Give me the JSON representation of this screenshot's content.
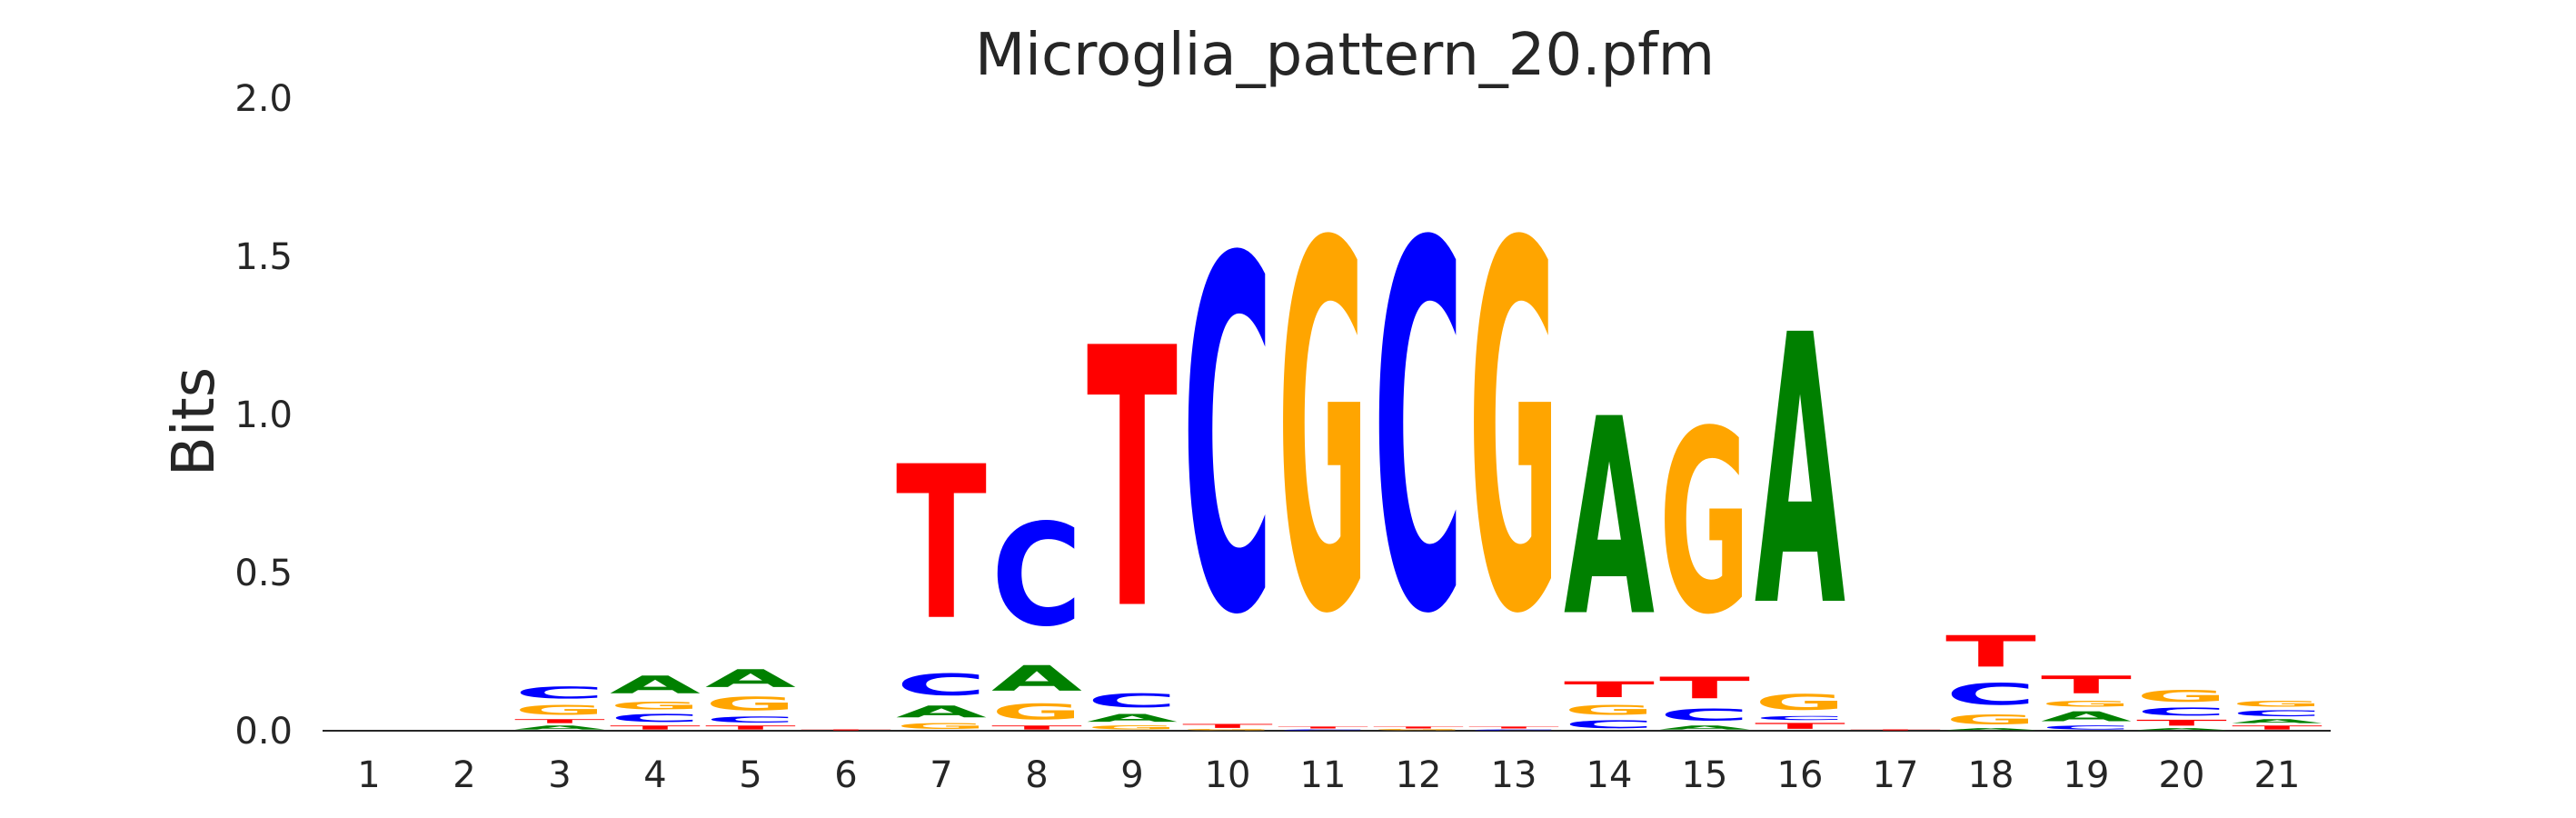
{
  "chart_data": {
    "type": "sequence-logo",
    "title": "Microglia_pattern_20.pfm",
    "ylabel": "Bits",
    "xlabel": "",
    "ylim": [
      0,
      2.0
    ],
    "yticks": [
      "0.0",
      "0.5",
      "1.0",
      "1.5",
      "2.0"
    ],
    "ytick_values": [
      0,
      0.5,
      1.0,
      1.5,
      2.0
    ],
    "grid": false,
    "colors": {
      "A": "#008000",
      "C": "#0000ff",
      "G": "#ffa500",
      "T": "#ff0000"
    },
    "positions": [
      {
        "label": "1",
        "stack": []
      },
      {
        "label": "2",
        "stack": []
      },
      {
        "label": "3",
        "stack": [
          [
            "A",
            0.02
          ],
          [
            "T",
            0.02
          ],
          [
            "G",
            0.05
          ],
          [
            "C",
            0.06
          ]
        ]
      },
      {
        "label": "4",
        "stack": [
          [
            "T",
            0.02
          ],
          [
            "C",
            0.04
          ],
          [
            "G",
            0.04
          ],
          [
            "A",
            0.09
          ]
        ]
      },
      {
        "label": "5",
        "stack": [
          [
            "T",
            0.02
          ],
          [
            "C",
            0.03
          ],
          [
            "G",
            0.07
          ],
          [
            "A",
            0.09
          ]
        ]
      },
      {
        "label": "6",
        "stack": [
          [
            "T",
            0.005
          ]
        ]
      },
      {
        "label": "7",
        "stack": [
          [
            "G",
            0.03
          ],
          [
            "A",
            0.06
          ],
          [
            "C",
            0.11
          ],
          [
            "T",
            0.78
          ]
        ]
      },
      {
        "label": "8",
        "stack": [
          [
            "T",
            0.02
          ],
          [
            "G",
            0.08
          ],
          [
            "A",
            0.13
          ],
          [
            "C",
            0.52
          ]
        ]
      },
      {
        "label": "9",
        "stack": [
          [
            "G",
            0.02
          ],
          [
            "A",
            0.04
          ],
          [
            "C",
            0.07
          ],
          [
            "T",
            1.32
          ]
        ]
      },
      {
        "label": "10",
        "stack": [
          [
            "G",
            0.005
          ],
          [
            "T",
            0.02
          ],
          [
            "C",
            1.79
          ]
        ]
      },
      {
        "label": "11",
        "stack": [
          [
            "C",
            0.005
          ],
          [
            "T",
            0.01
          ],
          [
            "G",
            1.86
          ]
        ]
      },
      {
        "label": "12",
        "stack": [
          [
            "G",
            0.005
          ],
          [
            "T",
            0.01
          ],
          [
            "C",
            1.86
          ]
        ]
      },
      {
        "label": "13",
        "stack": [
          [
            "C",
            0.005
          ],
          [
            "T",
            0.01
          ],
          [
            "G",
            1.86
          ]
        ]
      },
      {
        "label": "14",
        "stack": [
          [
            "C",
            0.04
          ],
          [
            "G",
            0.05
          ],
          [
            "T",
            0.08
          ],
          [
            "A",
            1.0
          ]
        ]
      },
      {
        "label": "15",
        "stack": [
          [
            "A",
            0.02
          ],
          [
            "C",
            0.06
          ],
          [
            "T",
            0.11
          ],
          [
            "G",
            0.93
          ]
        ]
      },
      {
        "label": "16",
        "stack": [
          [
            "T",
            0.03
          ],
          [
            "C",
            0.02
          ],
          [
            "G",
            0.08
          ],
          [
            "A",
            1.37
          ]
        ]
      },
      {
        "label": "17",
        "stack": [
          [
            "T",
            0.005
          ]
        ]
      },
      {
        "label": "18",
        "stack": [
          [
            "A",
            0.01
          ],
          [
            "G",
            0.05
          ],
          [
            "C",
            0.11
          ],
          [
            "T",
            0.16
          ]
        ]
      },
      {
        "label": "19",
        "stack": [
          [
            "C",
            0.02
          ],
          [
            "A",
            0.05
          ],
          [
            "G",
            0.03
          ],
          [
            "T",
            0.09
          ]
        ]
      },
      {
        "label": "20",
        "stack": [
          [
            "A",
            0.01
          ],
          [
            "T",
            0.03
          ],
          [
            "C",
            0.04
          ],
          [
            "G",
            0.06
          ]
        ]
      },
      {
        "label": "21",
        "stack": [
          [
            "T",
            0.02
          ],
          [
            "A",
            0.02
          ],
          [
            "C",
            0.03
          ],
          [
            "G",
            0.03
          ]
        ]
      }
    ]
  }
}
